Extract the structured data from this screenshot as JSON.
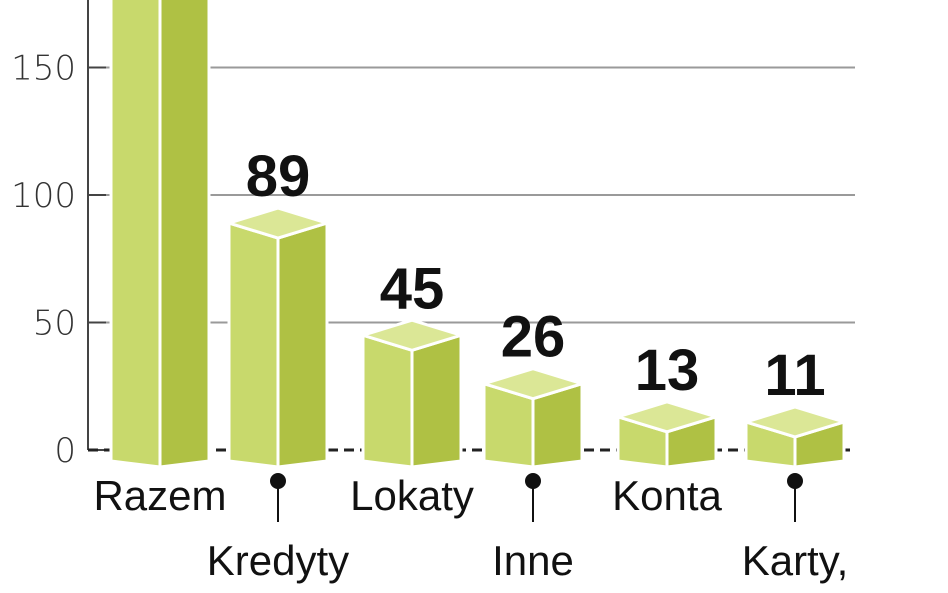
{
  "chart_data": {
    "type": "bar",
    "title": "",
    "xlabel": "",
    "ylabel": "",
    "categories": [
      "Razem",
      "Kredyty",
      "Lokaty",
      "Inne",
      "Konta",
      "Karty,"
    ],
    "values": [
      184,
      89,
      45,
      26,
      13,
      11
    ],
    "data_labels": [
      null,
      "89",
      "45",
      "26",
      "13",
      "11"
    ],
    "y_ticks": [
      "0",
      "50",
      "100",
      "150"
    ],
    "ylim": [
      0,
      184
    ],
    "grid": true,
    "colors": {
      "front": "#c8d96c",
      "side": "#afc144",
      "top": "#dbe796",
      "edge": "#ffffff",
      "grid": "#9a9a9a",
      "axis": "#444444"
    }
  }
}
